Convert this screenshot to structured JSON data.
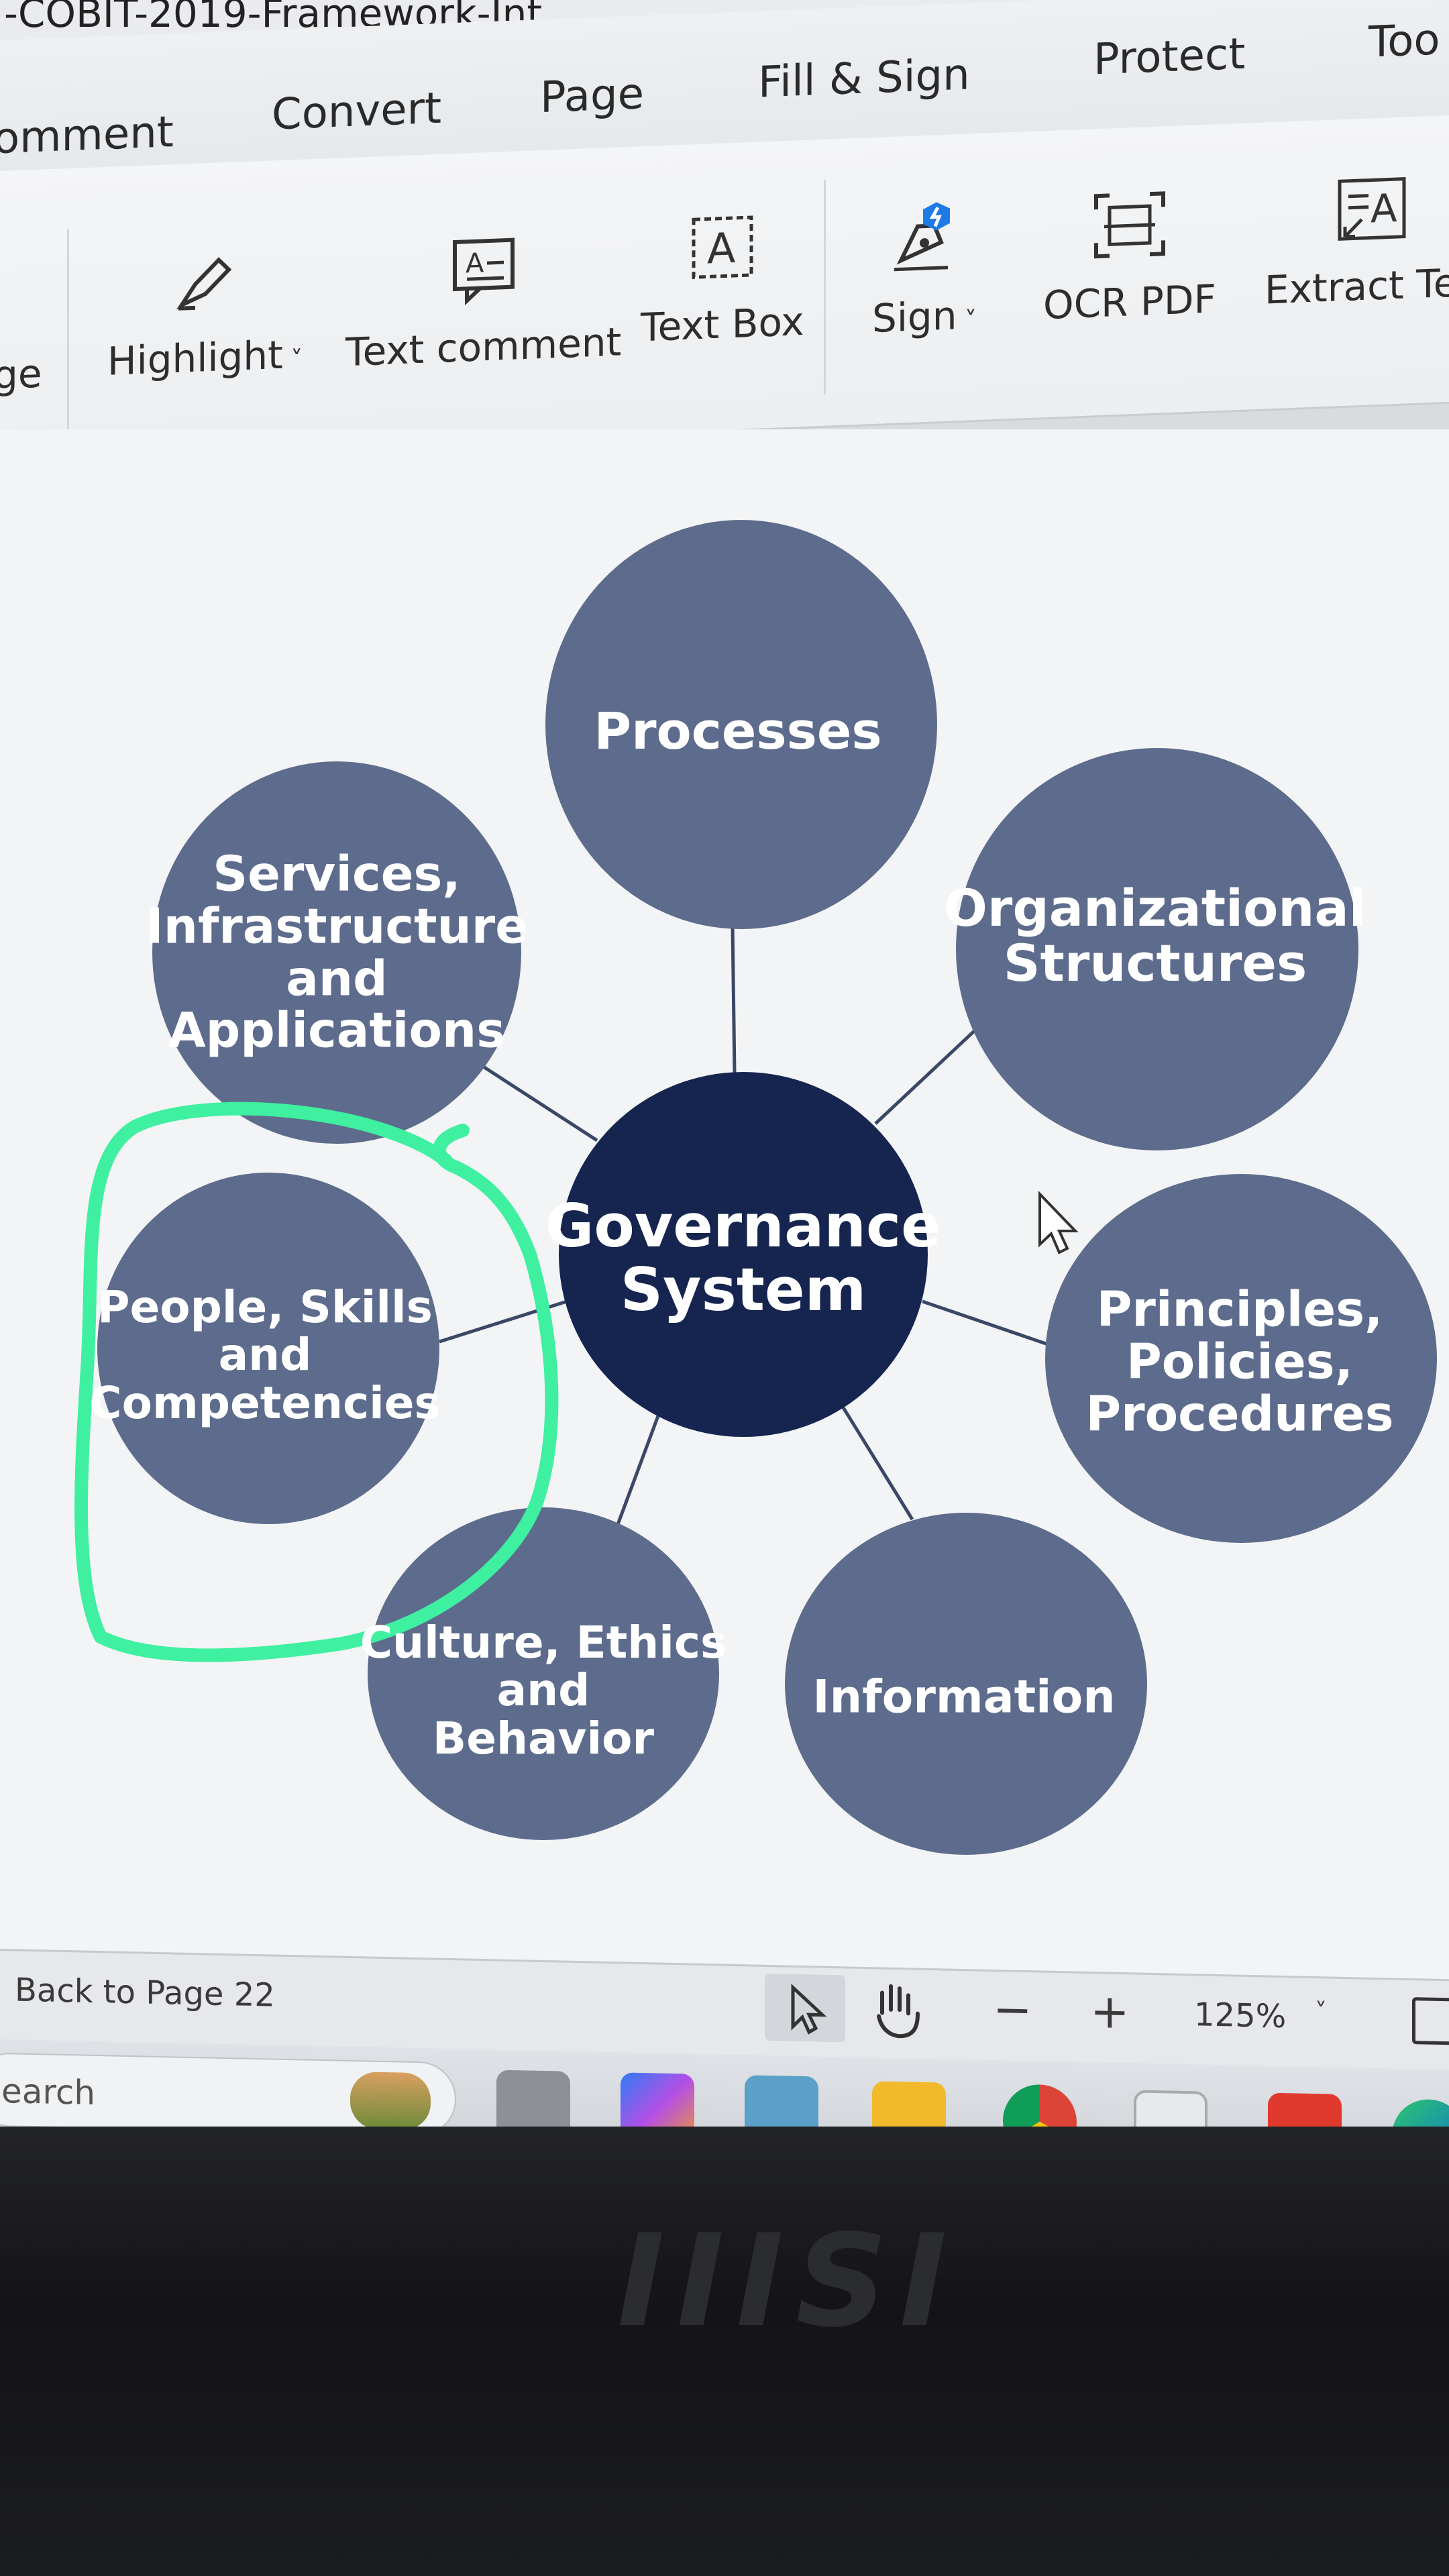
{
  "window": {
    "title": "-COBIT-2019-Framework-Int"
  },
  "menu": {
    "items": [
      "omment",
      "Convert",
      "Page",
      "Fill & Sign",
      "Protect",
      "Too"
    ]
  },
  "toolbar": {
    "items": [
      {
        "label": "ge",
        "icon": "page-icon"
      },
      {
        "label": "Highlight",
        "icon": "highlighter-icon",
        "has_dropdown": true
      },
      {
        "label": "Text comment",
        "icon": "text-comment-icon"
      },
      {
        "label": "Text Box",
        "icon": "text-box-icon"
      },
      {
        "label": "Sign",
        "icon": "sign-pen-icon",
        "has_dropdown": true
      },
      {
        "label": "OCR PDF",
        "icon": "ocr-icon"
      },
      {
        "label": "Extract Tex",
        "icon": "extract-text-icon"
      }
    ]
  },
  "diagram": {
    "center": {
      "label": "Governance\nSystem",
      "color": "#16254f"
    },
    "nodes": [
      {
        "id": "processes",
        "label": "Processes"
      },
      {
        "id": "organizational-structures",
        "label": "Organizational\nStructures"
      },
      {
        "id": "principles-policies-procedures",
        "label": "Principles,\nPolicies,\nProcedures"
      },
      {
        "id": "information",
        "label": "Information"
      },
      {
        "id": "culture-ethics-behavior",
        "label": "Culture, Ethics\nand\nBehavior"
      },
      {
        "id": "people-skills-competencies",
        "label": "People, Skills\nand\nCompetencies"
      },
      {
        "id": "services-infrastructure-applications",
        "label": "Services,\nInfrastructure\nand\nApplications"
      }
    ],
    "node_color": "#5d6b8c",
    "highlight_color": "#3ef0a0"
  },
  "statusbar": {
    "back_link": "Back to Page 22",
    "zoom_out": "−",
    "zoom_in": "+",
    "zoom_level": "125%"
  },
  "taskbar": {
    "search_placeholder": "earch",
    "apps": [
      "task-view-icon",
      "copilot-icon",
      "photos-icon",
      "file-explorer-icon",
      "chrome-icon",
      "store-icon",
      "wps-office-icon",
      "edge-icon"
    ]
  },
  "device": {
    "brand": "msi"
  }
}
